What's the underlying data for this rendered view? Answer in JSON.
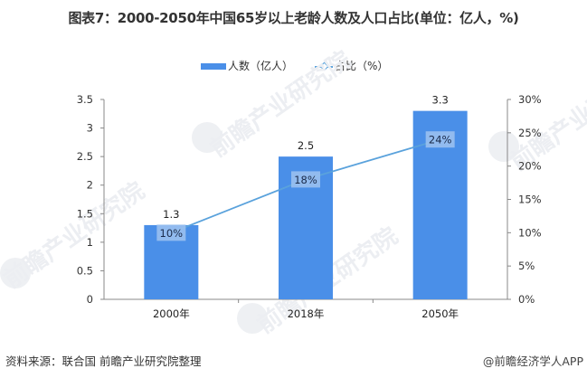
{
  "title": "图表7：2000-2050年中国65岁以上老龄人数及人口占比(单位：亿人，%)",
  "legend": {
    "bar_label": "人数（亿人）",
    "line_label": "占比（%）"
  },
  "colors": {
    "bar": "#4a8fe8",
    "line": "#5aa2dc",
    "axis": "#888888",
    "pct_label_bg": "#9fc3f0"
  },
  "footer": {
    "source": "资料来源：联合国 前瞻产业研究院整理",
    "credit": "@前瞻经济学人APP"
  },
  "watermark": "前瞻产业研究院",
  "chart_data": {
    "type": "bar",
    "title": "图表7：2000-2050年中国65岁以上老龄人数及人口占比(单位：亿人，%)",
    "categories": [
      "2000年",
      "2018年",
      "2050年"
    ],
    "series": [
      {
        "name": "人数（亿人）",
        "type": "bar",
        "axis": "left",
        "values": [
          1.3,
          2.5,
          3.3
        ],
        "labels": [
          "1.3",
          "2.5",
          "3.3"
        ]
      },
      {
        "name": "占比（%）",
        "type": "line",
        "axis": "right",
        "values": [
          10,
          18,
          24
        ],
        "labels": [
          "10%",
          "18%",
          "24%"
        ]
      }
    ],
    "left_axis": {
      "ylim": [
        0,
        3.5
      ],
      "ticks": [
        "0",
        "0.5",
        "1",
        "1.5",
        "2",
        "2.5",
        "3",
        "3.5"
      ]
    },
    "right_axis": {
      "ylim": [
        0,
        30
      ],
      "ticks": [
        "0%",
        "5%",
        "10%",
        "15%",
        "20%",
        "25%",
        "30%"
      ]
    },
    "legend_position": "top",
    "grid": false
  }
}
